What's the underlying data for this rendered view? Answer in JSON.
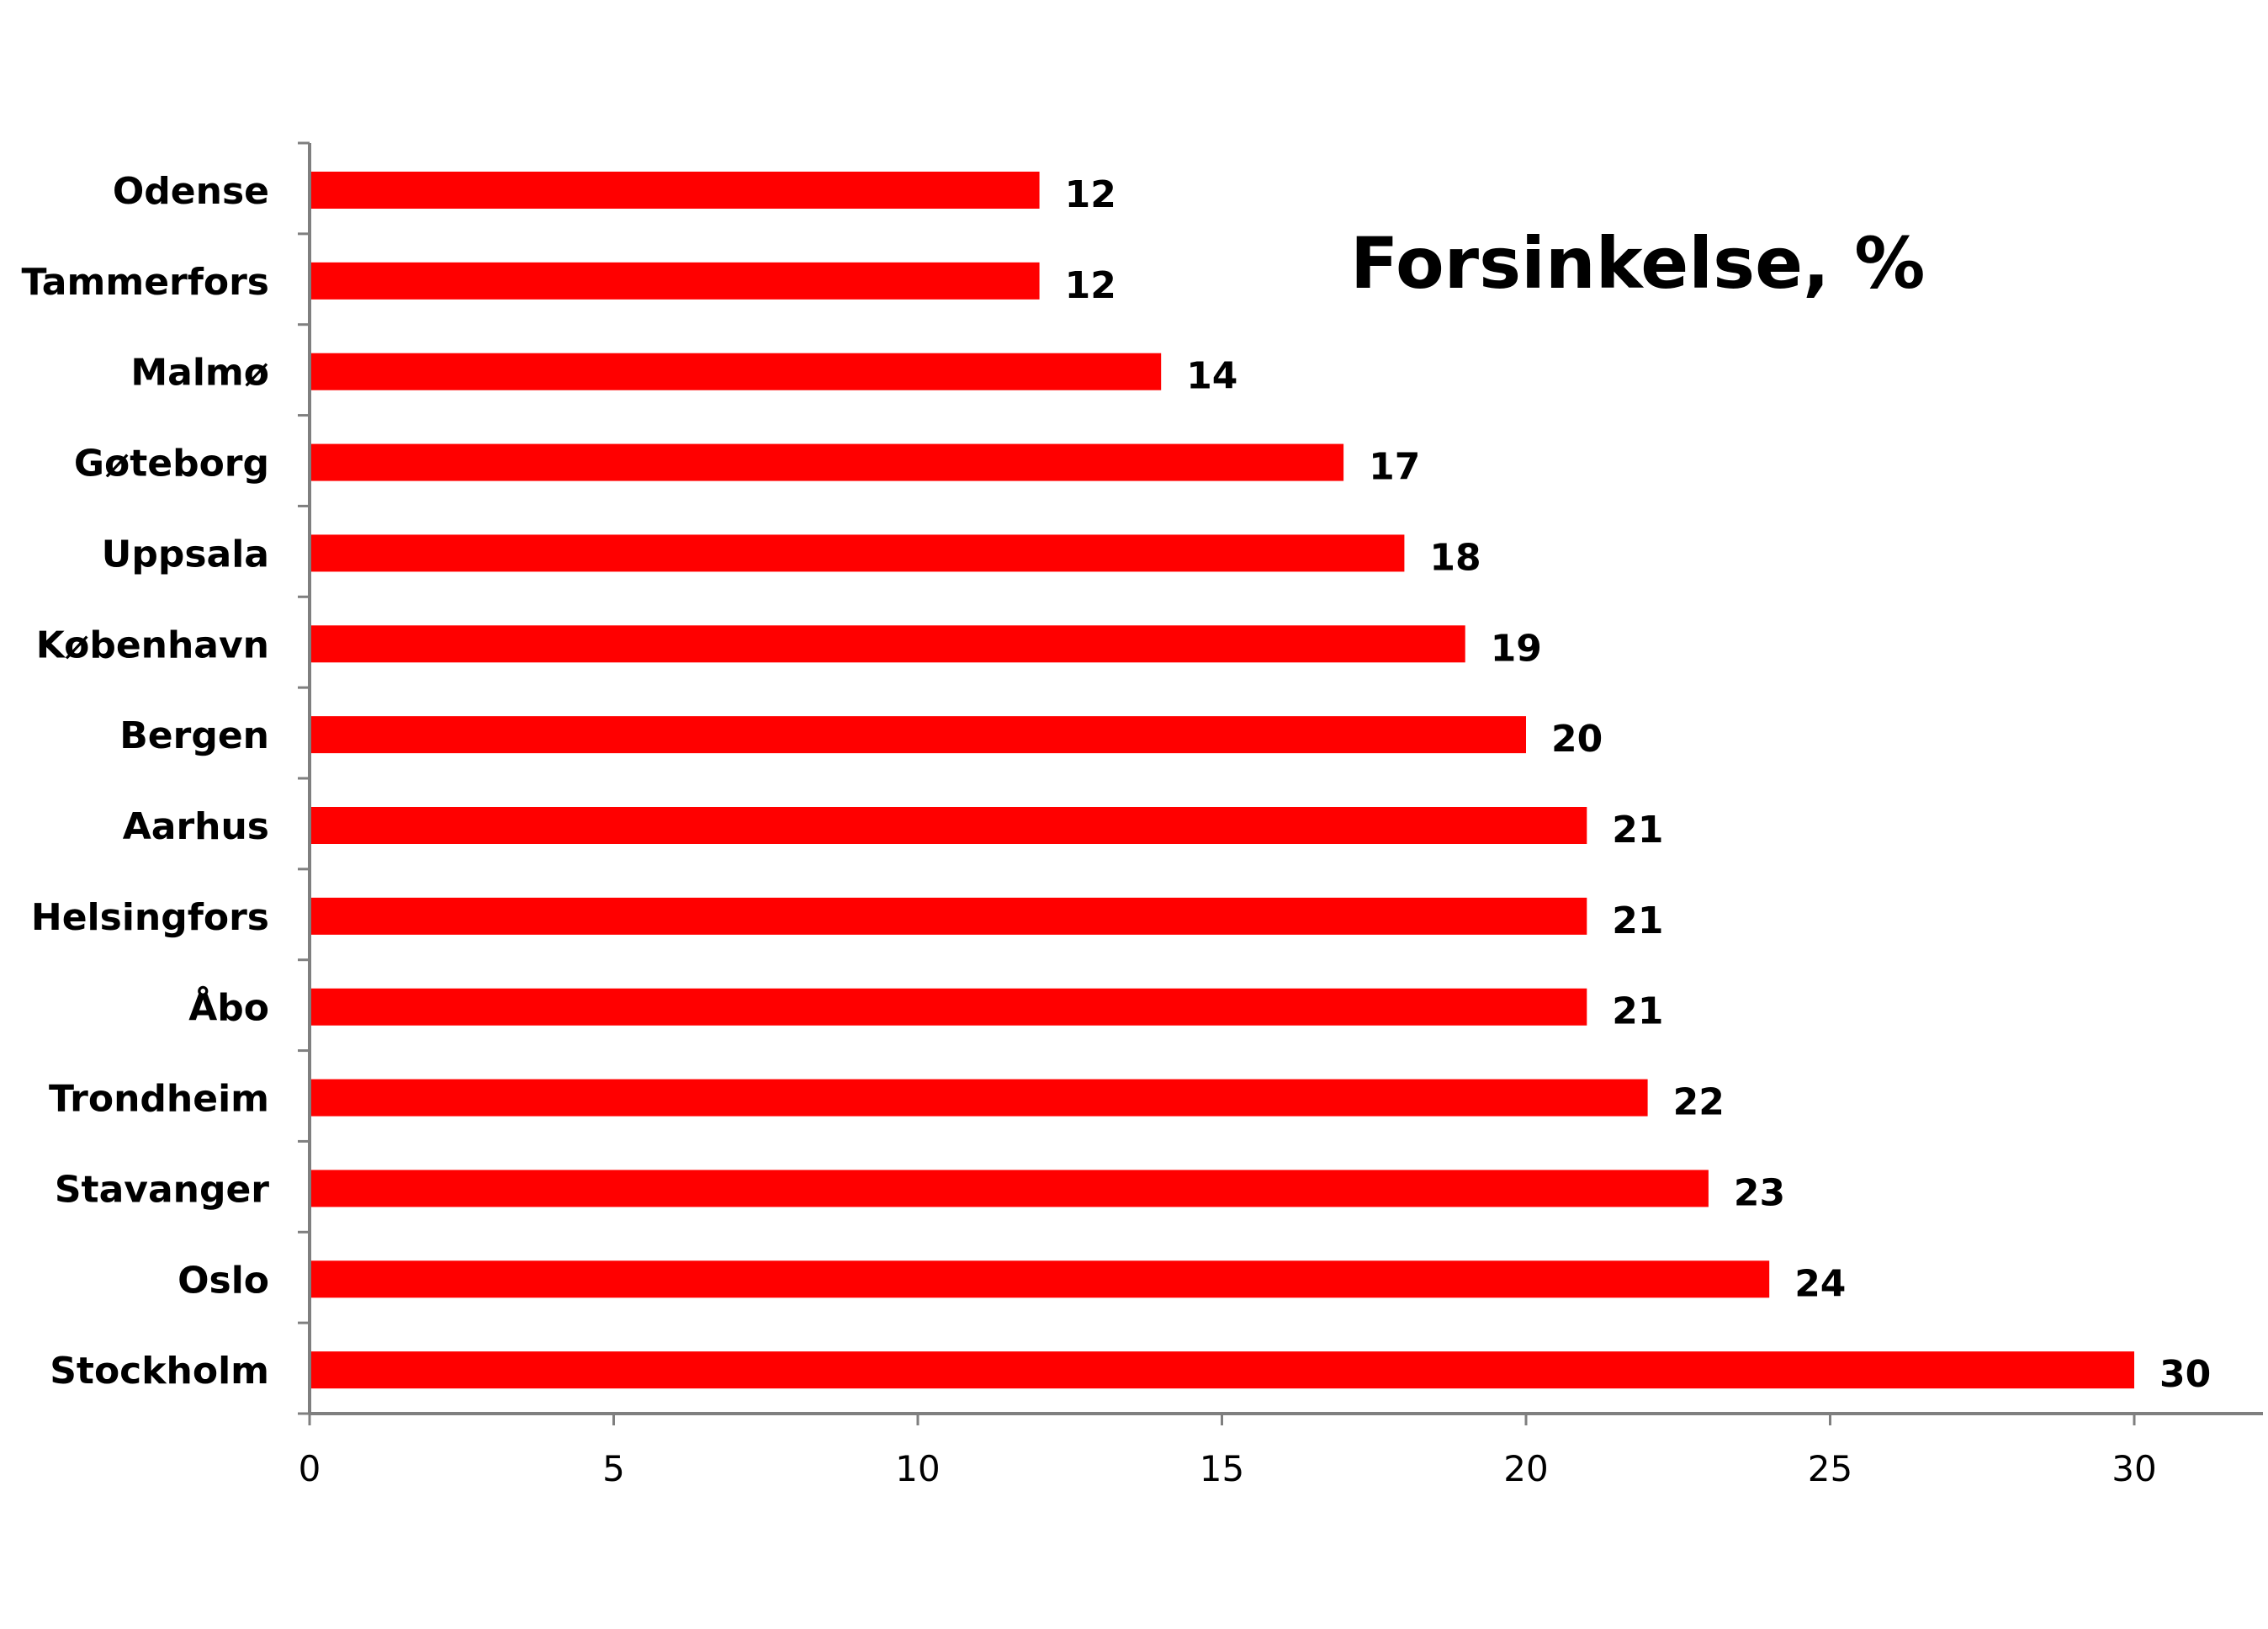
{
  "chart_data": {
    "type": "bar",
    "orientation": "horizontal",
    "title": "Forsinkelse, %",
    "xlabel": "",
    "ylabel": "",
    "categories": [
      "Odense",
      "Tammerfors",
      "Malmø",
      "Gøteborg",
      "Uppsala",
      "København",
      "Bergen",
      "Aarhus",
      "Helsingfors",
      "Åbo",
      "Trondheim",
      "Stavanger",
      "Oslo",
      "Stockholm"
    ],
    "values": [
      12,
      12,
      14,
      17,
      18,
      19,
      20,
      21,
      21,
      21,
      22,
      23,
      24,
      30
    ],
    "xlim": [
      0,
      32
    ],
    "xticks": [
      0,
      5,
      10,
      15,
      20,
      25,
      30
    ],
    "grid": false,
    "legend": "none",
    "bar_color": "#ff0000",
    "data_labels": true
  }
}
